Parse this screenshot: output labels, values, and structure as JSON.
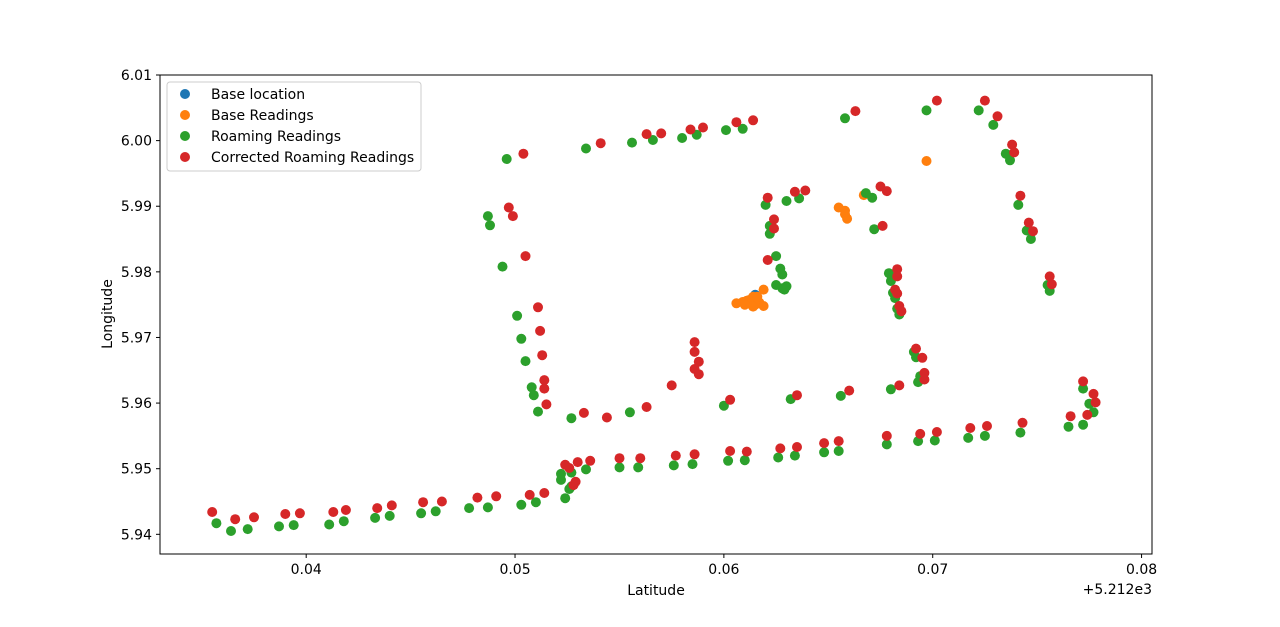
{
  "chart_data": {
    "type": "scatter",
    "xlabel": "Latitude",
    "ylabel": "Longitude",
    "x_offset_label": "+5.212e3",
    "xlim": [
      0.033,
      0.0805
    ],
    "ylim": [
      5.937,
      6.01
    ],
    "x_ticks": [
      0.04,
      0.05,
      0.06,
      0.07,
      0.08
    ],
    "x_tick_labels": [
      "0.04",
      "0.05",
      "0.06",
      "0.07",
      "0.08"
    ],
    "y_ticks": [
      5.94,
      5.95,
      5.96,
      5.97,
      5.98,
      5.99,
      6.0,
      6.01
    ],
    "y_tick_labels": [
      "5.94",
      "5.95",
      "5.96",
      "5.97",
      "5.98",
      "5.99",
      "6.00",
      "6.01"
    ],
    "grid": false,
    "legend_position": "top-left",
    "series": [
      {
        "name": "Base location",
        "color": "#1f77b4",
        "points": [
          [
            0.0615,
            5.9765
          ]
        ]
      },
      {
        "name": "Base Readings",
        "color": "#ff7f0e",
        "points": [
          [
            0.0606,
            5.9752
          ],
          [
            0.0609,
            5.9754
          ],
          [
            0.0611,
            5.9756
          ],
          [
            0.0612,
            5.9757
          ],
          [
            0.0613,
            5.9755
          ],
          [
            0.0614,
            5.9762
          ],
          [
            0.0615,
            5.975
          ],
          [
            0.0616,
            5.9758
          ],
          [
            0.0612,
            5.9752
          ],
          [
            0.0617,
            5.9753
          ],
          [
            0.0614,
            5.9747
          ],
          [
            0.061,
            5.975
          ],
          [
            0.0619,
            5.9748
          ],
          [
            0.0619,
            5.9773
          ],
          [
            0.0616,
            5.9762
          ],
          [
            0.0655,
            5.9898
          ],
          [
            0.0658,
            5.9893
          ],
          [
            0.0658,
            5.9888
          ],
          [
            0.0659,
            5.9881
          ],
          [
            0.0667,
            5.9917
          ],
          [
            0.0697,
            5.9969
          ]
        ]
      },
      {
        "name": "Roaming Readings",
        "color": "#2ca02c",
        "points": [
          [
            0.0357,
            5.9417
          ],
          [
            0.0364,
            5.9405
          ],
          [
            0.0372,
            5.9408
          ],
          [
            0.0387,
            5.9412
          ],
          [
            0.0394,
            5.9414
          ],
          [
            0.0411,
            5.9415
          ],
          [
            0.0418,
            5.942
          ],
          [
            0.0433,
            5.9425
          ],
          [
            0.044,
            5.9428
          ],
          [
            0.0455,
            5.9432
          ],
          [
            0.0462,
            5.9435
          ],
          [
            0.0478,
            5.944
          ],
          [
            0.0487,
            5.9441
          ],
          [
            0.0503,
            5.9445
          ],
          [
            0.051,
            5.9449
          ],
          [
            0.0524,
            5.9455
          ],
          [
            0.0526,
            5.9469
          ],
          [
            0.0527,
            5.9473
          ],
          [
            0.0522,
            5.9492
          ],
          [
            0.0522,
            5.9483
          ],
          [
            0.0527,
            5.9494
          ],
          [
            0.0534,
            5.9499
          ],
          [
            0.055,
            5.9502
          ],
          [
            0.0559,
            5.9502
          ],
          [
            0.0576,
            5.9505
          ],
          [
            0.0585,
            5.9507
          ],
          [
            0.0602,
            5.9512
          ],
          [
            0.061,
            5.9513
          ],
          [
            0.0626,
            5.9517
          ],
          [
            0.0634,
            5.952
          ],
          [
            0.0648,
            5.9525
          ],
          [
            0.0655,
            5.9527
          ],
          [
            0.0678,
            5.9537
          ],
          [
            0.0693,
            5.9542
          ],
          [
            0.0701,
            5.9543
          ],
          [
            0.0717,
            5.9547
          ],
          [
            0.0725,
            5.955
          ],
          [
            0.0742,
            5.9555
          ],
          [
            0.0765,
            5.9564
          ],
          [
            0.0772,
            5.9567
          ],
          [
            0.0777,
            5.9586
          ],
          [
            0.0775,
            5.9599
          ],
          [
            0.0772,
            5.9622
          ],
          [
            0.0527,
            5.9577
          ],
          [
            0.0511,
            5.9587
          ],
          [
            0.0509,
            5.9612
          ],
          [
            0.0508,
            5.9624
          ],
          [
            0.0505,
            5.9664
          ],
          [
            0.0503,
            5.9698
          ],
          [
            0.0501,
            5.9733
          ],
          [
            0.0494,
            5.9808
          ],
          [
            0.0488,
            5.9871
          ],
          [
            0.0487,
            5.9885
          ],
          [
            0.0496,
            5.9972
          ],
          [
            0.0534,
            5.9988
          ],
          [
            0.0556,
            5.9997
          ],
          [
            0.0566,
            6.0001
          ],
          [
            0.058,
            6.0004
          ],
          [
            0.0587,
            6.0009
          ],
          [
            0.0601,
            6.0016
          ],
          [
            0.0609,
            6.0018
          ],
          [
            0.0658,
            6.0034
          ],
          [
            0.0697,
            6.0046
          ],
          [
            0.0722,
            6.0046
          ],
          [
            0.0729,
            6.0024
          ],
          [
            0.0735,
            5.998
          ],
          [
            0.0737,
            5.997
          ],
          [
            0.0741,
            5.9902
          ],
          [
            0.0745,
            5.9863
          ],
          [
            0.0747,
            5.985
          ],
          [
            0.0755,
            5.978
          ],
          [
            0.0756,
            5.9771
          ],
          [
            0.062,
            5.9902
          ],
          [
            0.0622,
            5.987
          ],
          [
            0.0622,
            5.9858
          ],
          [
            0.0625,
            5.9824
          ],
          [
            0.0627,
            5.9805
          ],
          [
            0.0628,
            5.9796
          ],
          [
            0.0625,
            5.978
          ],
          [
            0.0628,
            5.9775
          ],
          [
            0.063,
            5.9778
          ],
          [
            0.0629,
            5.9773
          ],
          [
            0.063,
            5.9908
          ],
          [
            0.0636,
            5.9912
          ],
          [
            0.0668,
            5.992
          ],
          [
            0.0671,
            5.9913
          ],
          [
            0.0672,
            5.9865
          ],
          [
            0.0679,
            5.9798
          ],
          [
            0.068,
            5.9786
          ],
          [
            0.0681,
            5.9768
          ],
          [
            0.0682,
            5.976
          ],
          [
            0.0683,
            5.9744
          ],
          [
            0.0684,
            5.9735
          ],
          [
            0.0691,
            5.9678
          ],
          [
            0.0692,
            5.967
          ],
          [
            0.0694,
            5.9641
          ],
          [
            0.0693,
            5.9632
          ],
          [
            0.068,
            5.9621
          ],
          [
            0.0656,
            5.9611
          ],
          [
            0.0632,
            5.9606
          ],
          [
            0.06,
            5.9596
          ],
          [
            0.0555,
            5.9586
          ]
        ]
      },
      {
        "name": "Corrected Roaming Readings",
        "color": "#d62728",
        "points": [
          [
            0.0355,
            5.9434
          ],
          [
            0.0366,
            5.9423
          ],
          [
            0.0375,
            5.9426
          ],
          [
            0.039,
            5.9431
          ],
          [
            0.0397,
            5.9432
          ],
          [
            0.0413,
            5.9434
          ],
          [
            0.0419,
            5.9437
          ],
          [
            0.0434,
            5.944
          ],
          [
            0.0441,
            5.9444
          ],
          [
            0.0456,
            5.9449
          ],
          [
            0.0465,
            5.945
          ],
          [
            0.0482,
            5.9456
          ],
          [
            0.0491,
            5.9458
          ],
          [
            0.0507,
            5.946
          ],
          [
            0.0514,
            5.9463
          ],
          [
            0.0528,
            5.9475
          ],
          [
            0.0529,
            5.948
          ],
          [
            0.0524,
            5.9506
          ],
          [
            0.0526,
            5.9501
          ],
          [
            0.053,
            5.951
          ],
          [
            0.0536,
            5.9512
          ],
          [
            0.055,
            5.9516
          ],
          [
            0.056,
            5.9516
          ],
          [
            0.0577,
            5.952
          ],
          [
            0.0586,
            5.9522
          ],
          [
            0.0603,
            5.9527
          ],
          [
            0.0611,
            5.9526
          ],
          [
            0.0627,
            5.9531
          ],
          [
            0.0635,
            5.9533
          ],
          [
            0.0648,
            5.9539
          ],
          [
            0.0655,
            5.9542
          ],
          [
            0.0678,
            5.955
          ],
          [
            0.0694,
            5.9553
          ],
          [
            0.0702,
            5.9556
          ],
          [
            0.0718,
            5.9562
          ],
          [
            0.0726,
            5.9565
          ],
          [
            0.0743,
            5.957
          ],
          [
            0.0766,
            5.958
          ],
          [
            0.0774,
            5.9582
          ],
          [
            0.0778,
            5.9601
          ],
          [
            0.0777,
            5.9614
          ],
          [
            0.0772,
            5.9633
          ],
          [
            0.0533,
            5.9585
          ],
          [
            0.0544,
            5.9578
          ],
          [
            0.0515,
            5.9598
          ],
          [
            0.0514,
            5.9622
          ],
          [
            0.0514,
            5.9635
          ],
          [
            0.0513,
            5.9673
          ],
          [
            0.0512,
            5.971
          ],
          [
            0.0511,
            5.9746
          ],
          [
            0.0505,
            5.9824
          ],
          [
            0.0499,
            5.9885
          ],
          [
            0.0497,
            5.9898
          ],
          [
            0.0504,
            5.998
          ],
          [
            0.0541,
            5.9996
          ],
          [
            0.0563,
            6.001
          ],
          [
            0.057,
            6.0011
          ],
          [
            0.0584,
            6.0017
          ],
          [
            0.059,
            6.002
          ],
          [
            0.0606,
            6.0028
          ],
          [
            0.0614,
            6.0031
          ],
          [
            0.0663,
            6.0045
          ],
          [
            0.0702,
            6.0061
          ],
          [
            0.0725,
            6.0061
          ],
          [
            0.0731,
            6.0037
          ],
          [
            0.0738,
            5.9994
          ],
          [
            0.0739,
            5.9982
          ],
          [
            0.0742,
            5.9916
          ],
          [
            0.0746,
            5.9875
          ],
          [
            0.0748,
            5.9862
          ],
          [
            0.0756,
            5.9793
          ],
          [
            0.0757,
            5.9781
          ],
          [
            0.0621,
            5.9913
          ],
          [
            0.0624,
            5.988
          ],
          [
            0.0624,
            5.9866
          ],
          [
            0.0621,
            5.9818
          ],
          [
            0.0634,
            5.9922
          ],
          [
            0.0639,
            5.9924
          ],
          [
            0.0675,
            5.993
          ],
          [
            0.0678,
            5.9923
          ],
          [
            0.0676,
            5.987
          ],
          [
            0.0683,
            5.9804
          ],
          [
            0.0683,
            5.9793
          ],
          [
            0.0682,
            5.9773
          ],
          [
            0.0683,
            5.9767
          ],
          [
            0.0684,
            5.9748
          ],
          [
            0.0685,
            5.974
          ],
          [
            0.0692,
            5.9683
          ],
          [
            0.0695,
            5.9669
          ],
          [
            0.0696,
            5.9646
          ],
          [
            0.0696,
            5.9636
          ],
          [
            0.0684,
            5.9627
          ],
          [
            0.066,
            5.9619
          ],
          [
            0.0635,
            5.9612
          ],
          [
            0.0603,
            5.9605
          ],
          [
            0.0563,
            5.9594
          ],
          [
            0.0575,
            5.9627
          ],
          [
            0.0586,
            5.9693
          ],
          [
            0.0586,
            5.9678
          ],
          [
            0.0586,
            5.9652
          ],
          [
            0.0588,
            5.9663
          ],
          [
            0.0588,
            5.9644
          ]
        ]
      }
    ]
  }
}
